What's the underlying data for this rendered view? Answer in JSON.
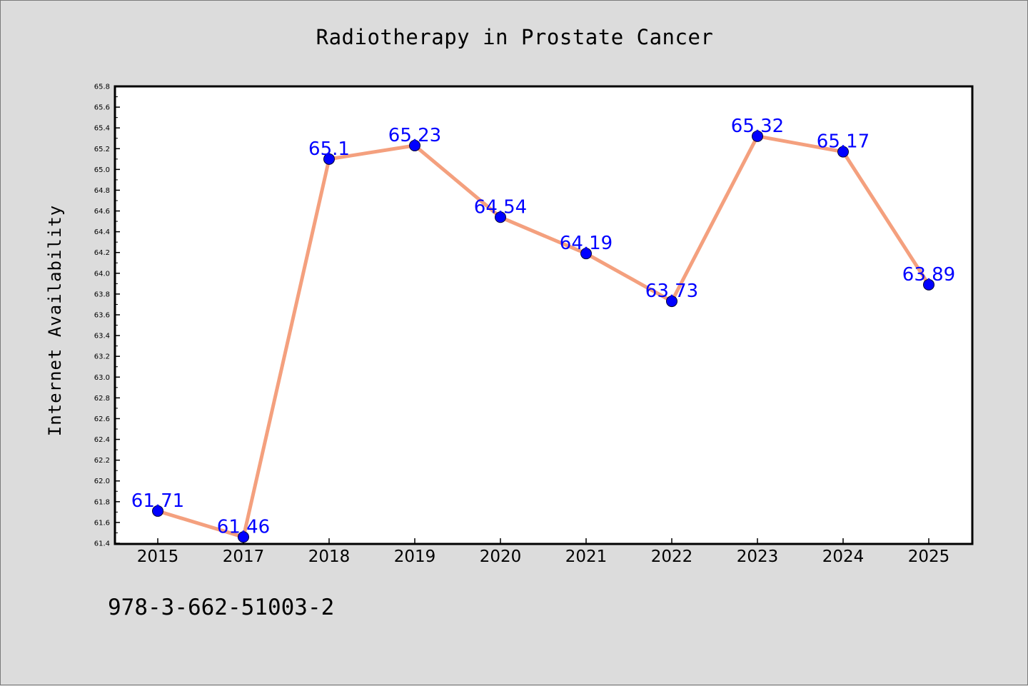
{
  "footer_text": "978-3-662-51003-2",
  "colors": {
    "background": "#dcdcdc",
    "plot_area": "#ffffff",
    "line": "#f4a07e",
    "marker": "#0000ff",
    "data_label": "#0000ff"
  },
  "chart_data": {
    "type": "line",
    "title": "Radiotherapy in Prostate Cancer",
    "xlabel": "",
    "ylabel": "Internet Availability",
    "categories": [
      "2015",
      "2017",
      "2018",
      "2019",
      "2020",
      "2021",
      "2022",
      "2023",
      "2024",
      "2025"
    ],
    "values": [
      61.71,
      61.46,
      65.1,
      65.23,
      64.54,
      64.19,
      63.73,
      65.32,
      65.17,
      63.89
    ],
    "data_labels": [
      "61.71",
      "61.46",
      "65.1",
      "65.23",
      "64.54",
      "64.19",
      "63.73",
      "65.32",
      "65.17",
      "63.89"
    ],
    "ylim": [
      61.4,
      65.8
    ],
    "yticks": [
      "61.4",
      "61.6",
      "61.8",
      "62.0",
      "62.2",
      "62.4",
      "62.6",
      "62.8",
      "63.0",
      "63.2",
      "63.4",
      "63.6",
      "63.8",
      "64.0",
      "64.2",
      "64.4",
      "64.6",
      "64.8",
      "65.0",
      "65.2",
      "65.4",
      "65.6",
      "65.8"
    ],
    "grid": false,
    "legend": "none",
    "markers": true
  }
}
